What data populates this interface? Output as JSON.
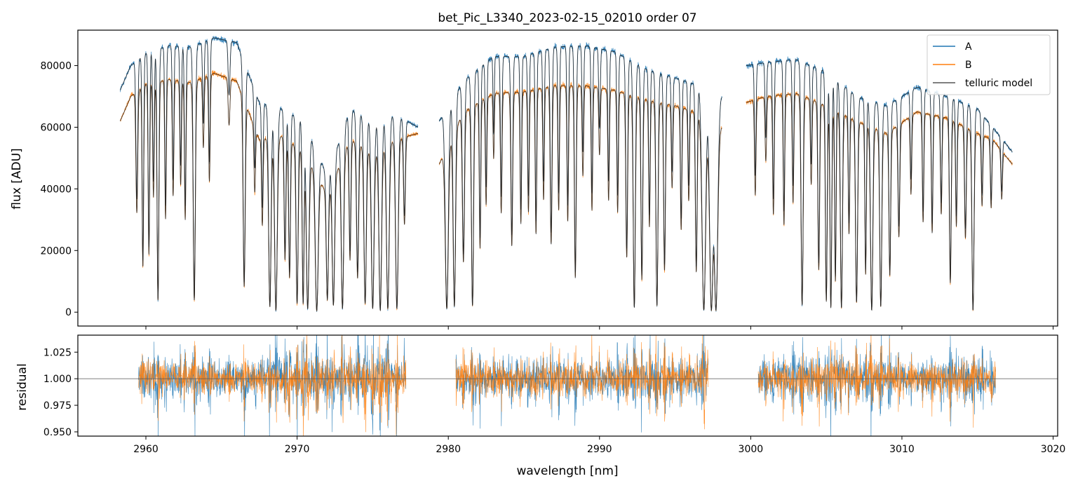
{
  "chart_data": [
    {
      "type": "line",
      "panel": "top",
      "title": "bet_Pic_L3340_2023-02-15_02010  order 07",
      "xlabel": "",
      "ylabel": "flux [ADU]",
      "xlim": [
        2955.5,
        3020.3
      ],
      "ylim": [
        -4500,
        91500
      ],
      "xticks": [
        2960,
        2970,
        2980,
        2990,
        3000,
        3010,
        3020
      ],
      "yticks": [
        0,
        20000,
        40000,
        60000,
        80000
      ],
      "ytick_labels": [
        "0",
        "20000",
        "40000",
        "60000",
        "80000"
      ],
      "segments": [
        [
          2958.3,
          2978.0
        ],
        [
          2979.4,
          2998.1
        ],
        [
          2999.7,
          3017.3
        ]
      ],
      "continuum_A": {
        "x": [
          2958.3,
          2959.0,
          2960.0,
          2961.5,
          2963.0,
          2964.5,
          2966.0,
          2967.5,
          2969.0,
          2970.5,
          2972.0,
          2973.5,
          2975.0,
          2976.5,
          2978.0,
          2979.4,
          2981.0,
          2983.0,
          2985.0,
          2987.0,
          2989.0,
          2991.0,
          2993.0,
          2995.0,
          2997.0,
          2998.1,
          2999.7,
          3001.0,
          3003.0,
          3005.0,
          3007.0,
          3009.0,
          3011.0,
          3013.0,
          3015.0,
          3016.0,
          3017.3
        ],
        "y": [
          72000,
          80000,
          84000,
          86500,
          86000,
          89000,
          87500,
          68000,
          66000,
          62000,
          44000,
          66000,
          62000,
          64000,
          60000,
          62000,
          75000,
          83000,
          83000,
          86000,
          86500,
          84500,
          79000,
          76000,
          73000,
          70000,
          80000,
          81000,
          82000,
          78000,
          70000,
          67000,
          73000,
          70000,
          66000,
          60000,
          52000
        ]
      },
      "continuum_B": {
        "x": [
          2958.3,
          2959.0,
          2960.0,
          2961.5,
          2963.0,
          2964.5,
          2966.0,
          2967.5,
          2969.0,
          2970.5,
          2972.0,
          2973.5,
          2975.0,
          2976.5,
          2978.0,
          2979.4,
          2981.0,
          2983.0,
          2985.0,
          2987.0,
          2989.0,
          2991.0,
          2993.0,
          2995.0,
          2997.0,
          2998.1,
          2999.7,
          3001.0,
          3003.0,
          3005.0,
          3007.0,
          3009.0,
          3011.0,
          3013.0,
          3015.0,
          3016.0,
          3017.3
        ],
        "y": [
          62000,
          70000,
          74000,
          75500,
          74500,
          77500,
          75000,
          56000,
          57000,
          52000,
          38000,
          56000,
          52000,
          56000,
          58000,
          48000,
          65000,
          71000,
          71500,
          73500,
          73500,
          72000,
          69000,
          67000,
          64000,
          60000,
          68000,
          70000,
          71000,
          67000,
          62000,
          58000,
          65000,
          63000,
          58000,
          56000,
          48000
        ]
      },
      "absorption_lines": [
        [
          2959.4,
          0.55,
          0.06
        ],
        [
          2959.8,
          0.8,
          0.05
        ],
        [
          2960.2,
          0.75,
          0.05
        ],
        [
          2960.5,
          0.5,
          0.05
        ],
        [
          2960.8,
          0.95,
          0.06
        ],
        [
          2961.3,
          0.6,
          0.05
        ],
        [
          2961.8,
          0.5,
          0.05
        ],
        [
          2962.3,
          0.45,
          0.05
        ],
        [
          2962.6,
          0.6,
          0.05
        ],
        [
          2963.2,
          0.95,
          0.07
        ],
        [
          2963.8,
          0.3,
          0.05
        ],
        [
          2964.2,
          0.45,
          0.05
        ],
        [
          2965.5,
          0.2,
          0.06
        ],
        [
          2966.5,
          0.88,
          0.07
        ],
        [
          2967.2,
          0.35,
          0.05
        ],
        [
          2967.7,
          0.5,
          0.05
        ],
        [
          2968.2,
          0.97,
          0.08
        ],
        [
          2968.6,
          0.99,
          0.09
        ],
        [
          2969.2,
          0.7,
          0.06
        ],
        [
          2969.5,
          0.8,
          0.06
        ],
        [
          2970.0,
          0.95,
          0.07
        ],
        [
          2970.4,
          0.95,
          0.06
        ],
        [
          2970.7,
          0.98,
          0.09
        ],
        [
          2971.3,
          0.99,
          0.1
        ],
        [
          2972.0,
          0.9,
          0.07
        ],
        [
          2972.4,
          0.95,
          0.08
        ],
        [
          2973.0,
          0.98,
          0.08
        ],
        [
          2973.5,
          0.7,
          0.06
        ],
        [
          2974.0,
          0.8,
          0.07
        ],
        [
          2974.5,
          0.95,
          0.08
        ],
        [
          2975.0,
          0.98,
          0.09
        ],
        [
          2975.5,
          0.99,
          0.09
        ],
        [
          2976.0,
          0.98,
          0.09
        ],
        [
          2976.6,
          0.98,
          0.09
        ],
        [
          2977.1,
          0.5,
          0.06
        ],
        [
          2979.9,
          0.98,
          0.1
        ],
        [
          2980.4,
          0.97,
          0.08
        ],
        [
          2981.0,
          0.75,
          0.07
        ],
        [
          2981.6,
          0.97,
          0.07
        ],
        [
          2982.1,
          0.7,
          0.05
        ],
        [
          2982.5,
          0.5,
          0.05
        ],
        [
          2983.0,
          0.3,
          0.04
        ],
        [
          2983.5,
          0.55,
          0.05
        ],
        [
          2984.2,
          0.7,
          0.06
        ],
        [
          2984.8,
          0.6,
          0.05
        ],
        [
          2985.3,
          0.55,
          0.05
        ],
        [
          2985.8,
          0.65,
          0.05
        ],
        [
          2986.3,
          0.5,
          0.05
        ],
        [
          2986.8,
          0.7,
          0.06
        ],
        [
          2987.3,
          0.55,
          0.05
        ],
        [
          2987.9,
          0.6,
          0.05
        ],
        [
          2988.4,
          0.85,
          0.06
        ],
        [
          2988.9,
          0.4,
          0.05
        ],
        [
          2989.5,
          0.55,
          0.05
        ],
        [
          2990.0,
          0.3,
          0.05
        ],
        [
          2990.6,
          0.5,
          0.05
        ],
        [
          2991.2,
          0.55,
          0.05
        ],
        [
          2991.8,
          0.75,
          0.06
        ],
        [
          2992.3,
          0.98,
          0.07
        ],
        [
          2992.8,
          0.85,
          0.06
        ],
        [
          2993.3,
          0.6,
          0.05
        ],
        [
          2993.8,
          0.97,
          0.07
        ],
        [
          2994.3,
          0.8,
          0.06
        ],
        [
          2994.8,
          0.4,
          0.05
        ],
        [
          2995.4,
          0.6,
          0.05
        ],
        [
          2995.9,
          0.45,
          0.05
        ],
        [
          2996.4,
          0.8,
          0.06
        ],
        [
          2996.9,
          0.99,
          0.12
        ],
        [
          2997.4,
          0.99,
          0.12
        ],
        [
          2997.7,
          0.99,
          0.12
        ],
        [
          3000.3,
          0.45,
          0.05
        ],
        [
          3001.0,
          0.3,
          0.05
        ],
        [
          3001.5,
          0.55,
          0.05
        ],
        [
          3002.2,
          0.6,
          0.05
        ],
        [
          3002.8,
          0.5,
          0.05
        ],
        [
          3003.4,
          0.97,
          0.07
        ],
        [
          3004.0,
          0.4,
          0.05
        ],
        [
          3004.5,
          0.8,
          0.06
        ],
        [
          3005.0,
          0.95,
          0.06
        ],
        [
          3005.3,
          0.98,
          0.06
        ],
        [
          3005.6,
          0.85,
          0.05
        ],
        [
          3006.0,
          0.98,
          0.07
        ],
        [
          3006.5,
          0.6,
          0.05
        ],
        [
          3007.0,
          0.95,
          0.07
        ],
        [
          3007.6,
          0.8,
          0.05
        ],
        [
          3008.0,
          0.99,
          0.08
        ],
        [
          3008.6,
          0.97,
          0.07
        ],
        [
          3009.2,
          0.8,
          0.06
        ],
        [
          3009.8,
          0.6,
          0.06
        ],
        [
          3010.6,
          0.4,
          0.05
        ],
        [
          3011.4,
          0.55,
          0.05
        ],
        [
          3012.0,
          0.6,
          0.05
        ],
        [
          3012.6,
          0.5,
          0.05
        ],
        [
          3013.2,
          0.85,
          0.06
        ],
        [
          3013.6,
          0.55,
          0.05
        ],
        [
          3014.2,
          0.6,
          0.06
        ],
        [
          3014.7,
          0.99,
          0.07
        ],
        [
          3015.3,
          0.4,
          0.05
        ],
        [
          3015.9,
          0.4,
          0.05
        ],
        [
          3016.6,
          0.3,
          0.05
        ]
      ],
      "series": [
        {
          "name": "A",
          "color": "#1f77b4"
        },
        {
          "name": "B",
          "color": "#ff7f0e"
        },
        {
          "name": "telluric model",
          "color": "#333333"
        }
      ],
      "legend_position": "top-right"
    },
    {
      "type": "line",
      "panel": "bottom",
      "xlabel": "wavelength [nm]",
      "ylabel": "residual",
      "xlim": [
        2955.5,
        3020.3
      ],
      "ylim": [
        0.946,
        1.041
      ],
      "xticks": [
        2960,
        2970,
        2980,
        2990,
        3000,
        3010,
        3020
      ],
      "xtick_labels": [
        "2960",
        "2970",
        "2980",
        "2990",
        "3000",
        "3010",
        "3020"
      ],
      "yticks": [
        0.95,
        0.975,
        1.0,
        1.025
      ],
      "ytick_labels": [
        "0.950",
        "0.975",
        "1.000",
        "1.025"
      ],
      "reference_line": 1.0,
      "residual_segments": [
        [
          2959.5,
          2977.2
        ],
        [
          2980.5,
          2997.2
        ],
        [
          3000.5,
          3016.2
        ]
      ],
      "residual_scatter": {
        "A": 0.017,
        "B": 0.014
      },
      "series": [
        {
          "name": "A",
          "color": "#1f77b4"
        },
        {
          "name": "B",
          "color": "#ff7f0e"
        }
      ]
    }
  ]
}
